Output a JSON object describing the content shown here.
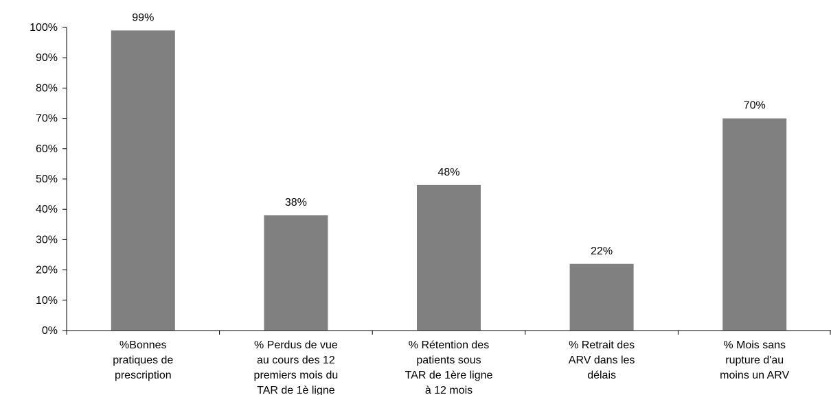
{
  "chart_data": {
    "type": "bar",
    "categories": [
      [
        "%Bonnes",
        "pratiques de",
        "prescription"
      ],
      [
        "% Perdus de vue",
        "au cours des 12",
        "premiers mois du",
        "TAR de 1è ligne"
      ],
      [
        "% Rétention des",
        "patients sous",
        "TAR de 1ère ligne",
        "à 12 mois"
      ],
      [
        "% Retrait des",
        "ARV dans les",
        "délais"
      ],
      [
        "% Mois sans",
        "rupture d'au",
        "moins un ARV"
      ]
    ],
    "values": [
      99,
      38,
      48,
      22,
      70
    ],
    "data_labels": [
      "99%",
      "38%",
      "48%",
      "22%",
      "70%"
    ],
    "y_ticks": [
      "0%",
      "10%",
      "20%",
      "30%",
      "40%",
      "50%",
      "60%",
      "70%",
      "80%",
      "90%",
      "100%"
    ],
    "ylim": [
      0,
      100
    ],
    "bar_color": "#808080",
    "title": "",
    "xlabel": "",
    "ylabel": "",
    "grid": false,
    "legend": "none"
  }
}
